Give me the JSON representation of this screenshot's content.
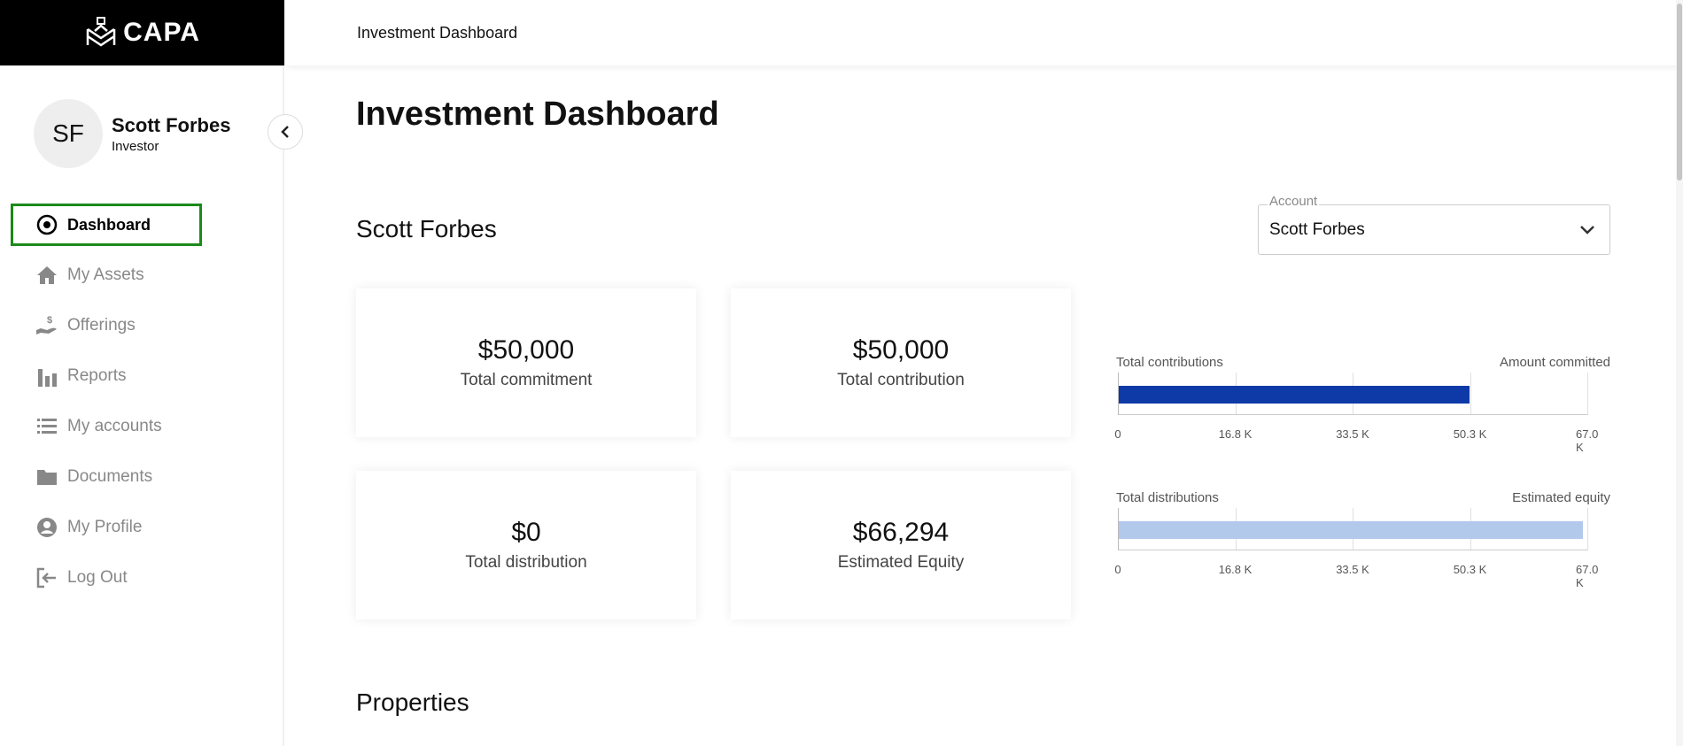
{
  "brand": {
    "name": "CAPA"
  },
  "user": {
    "initials": "SF",
    "name": "Scott Forbes",
    "role": "Investor"
  },
  "nav": [
    {
      "label": "Dashboard",
      "icon": "radio-target-icon",
      "active": true
    },
    {
      "label": "My Assets",
      "icon": "home-icon"
    },
    {
      "label": "Offerings",
      "icon": "hand-dollar-icon"
    },
    {
      "label": "Reports",
      "icon": "bar-chart-icon"
    },
    {
      "label": "My accounts",
      "icon": "list-icon"
    },
    {
      "label": "Documents",
      "icon": "folder-icon"
    },
    {
      "label": "My Profile",
      "icon": "user-circle-icon"
    },
    {
      "label": "Log Out",
      "icon": "logout-icon"
    }
  ],
  "header": {
    "breadcrumb": "Investment Dashboard"
  },
  "main": {
    "title": "Investment Dashboard",
    "investor_name": "Scott Forbes",
    "account_select": {
      "legend": "Account",
      "value": "Scott Forbes"
    },
    "cards": [
      {
        "amount": "$50,000",
        "label": "Total commitment"
      },
      {
        "amount": "$50,000",
        "label": "Total contribution"
      },
      {
        "amount": "$0",
        "label": "Total distribution"
      },
      {
        "amount": "$66,294",
        "label": "Estimated Equity"
      }
    ],
    "properties_title": "Properties"
  },
  "chart_data": [
    {
      "type": "bar",
      "orientation": "horizontal",
      "left_label": "Total contributions",
      "right_label": "Amount committed",
      "value": 50000,
      "xlim": [
        0,
        67000
      ],
      "ticks": [
        "0",
        "16.8 K",
        "33.5 K",
        "50.3 K",
        "67.0 K"
      ],
      "color": "#0d3aa6"
    },
    {
      "type": "bar",
      "orientation": "horizontal",
      "left_label": "Total distributions",
      "right_label": "Estimated equity",
      "value": 66294,
      "xlim": [
        0,
        67000
      ],
      "ticks": [
        "0",
        "16.8 K",
        "33.5 K",
        "50.3 K",
        "67.0 K"
      ],
      "color": "#b3c9ec"
    }
  ]
}
